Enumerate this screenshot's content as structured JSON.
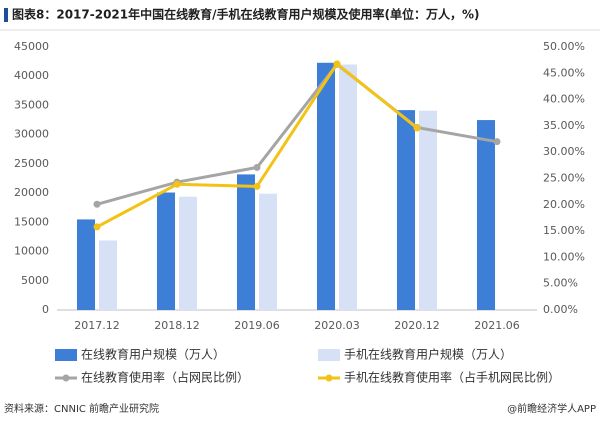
{
  "chart_data": {
    "type": "combo",
    "title": "图表8：2017-2021年中国在线教育/手机在线教育用户规模及使用率(单位：万人，%)",
    "source": "资料来源：CNNIC 前瞻产业研究院",
    "credit": "@前瞻经济学人APP",
    "categories": [
      "2017.12",
      "2018.12",
      "2019.06",
      "2020.03",
      "2020.12",
      "2021.06"
    ],
    "series": [
      {
        "name": "在线教育用户规模（万人）",
        "type": "bar",
        "color": "#3d7fd6",
        "values": [
          15500,
          20100,
          23200,
          42300,
          34200,
          32500
        ]
      },
      {
        "name": "手机在线教育用户规模（万人）",
        "type": "bar",
        "color": "#d7e1f5",
        "values": [
          11900,
          19400,
          19900,
          42000,
          34100,
          null
        ]
      },
      {
        "name": "在线教育使用率（占网民比例）",
        "type": "line",
        "axis": "y2",
        "color": "#a5a5a5",
        "values": [
          20.1,
          24.3,
          27.1,
          46.7,
          34.7,
          32.0
        ]
      },
      {
        "name": "手机在线教育使用率（占手机网民比例）",
        "type": "line",
        "axis": "y2",
        "color": "#f2c314",
        "values": [
          15.8,
          23.9,
          23.5,
          46.8,
          34.6,
          null
        ]
      }
    ],
    "ylim": [
      0,
      45000
    ],
    "yticks": [
      0,
      5000,
      10000,
      15000,
      20000,
      25000,
      30000,
      35000,
      40000,
      45000
    ],
    "y2lim": [
      0,
      50
    ],
    "y2ticks": [
      {
        "value": 0,
        "label": "0.00%"
      },
      {
        "value": 5,
        "label": "5.00%"
      },
      {
        "value": 10,
        "label": "10.00%"
      },
      {
        "value": 15,
        "label": "15.00%"
      },
      {
        "value": 20,
        "label": "20.00%"
      },
      {
        "value": 25,
        "label": "25.00%"
      },
      {
        "value": 30,
        "label": "30.00%"
      },
      {
        "value": 35,
        "label": "35.00%"
      },
      {
        "value": 40,
        "label": "40.00%"
      },
      {
        "value": 45,
        "label": "45.00%"
      },
      {
        "value": 50,
        "label": "50.00%"
      }
    ],
    "grid": false
  }
}
